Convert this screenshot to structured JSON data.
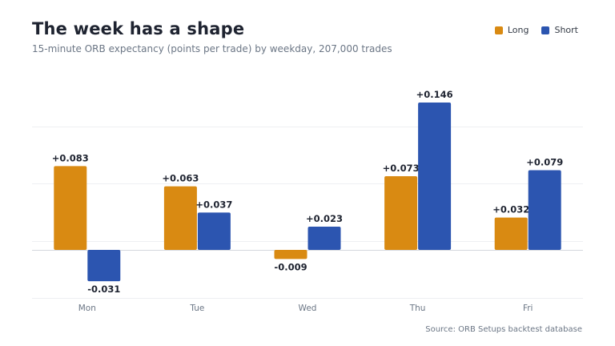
{
  "header": {
    "title": "The week has a shape",
    "subtitle": "15-minute ORB expectancy (points per trade) by weekday, 207,000 trades"
  },
  "legend": {
    "items": [
      {
        "label": "Long",
        "color": "#d98a12"
      },
      {
        "label": "Short",
        "color": "#2c55b0"
      }
    ]
  },
  "footer": {
    "source": "Source: ORB Setups backtest database"
  },
  "chart_data": {
    "type": "bar",
    "categories": [
      "Mon",
      "Tue",
      "Wed",
      "Thu",
      "Fri"
    ],
    "series": [
      {
        "name": "Long",
        "values": [
          0.083,
          0.063,
          -0.009,
          0.073,
          0.032
        ],
        "labels": [
          "+0.083",
          "+0.063",
          "-0.009",
          "+0.073",
          "+0.032"
        ],
        "color": "#d98a12"
      },
      {
        "name": "Short",
        "values": [
          -0.031,
          0.037,
          0.023,
          0.146,
          0.079
        ],
        "labels": [
          "-0.031",
          "+0.037",
          "+0.023",
          "+0.146",
          "+0.079"
        ],
        "color": "#2c55b0"
      }
    ],
    "ylim": [
      -0.048,
      0.2
    ],
    "grid": true,
    "legend_position": "top-right"
  }
}
